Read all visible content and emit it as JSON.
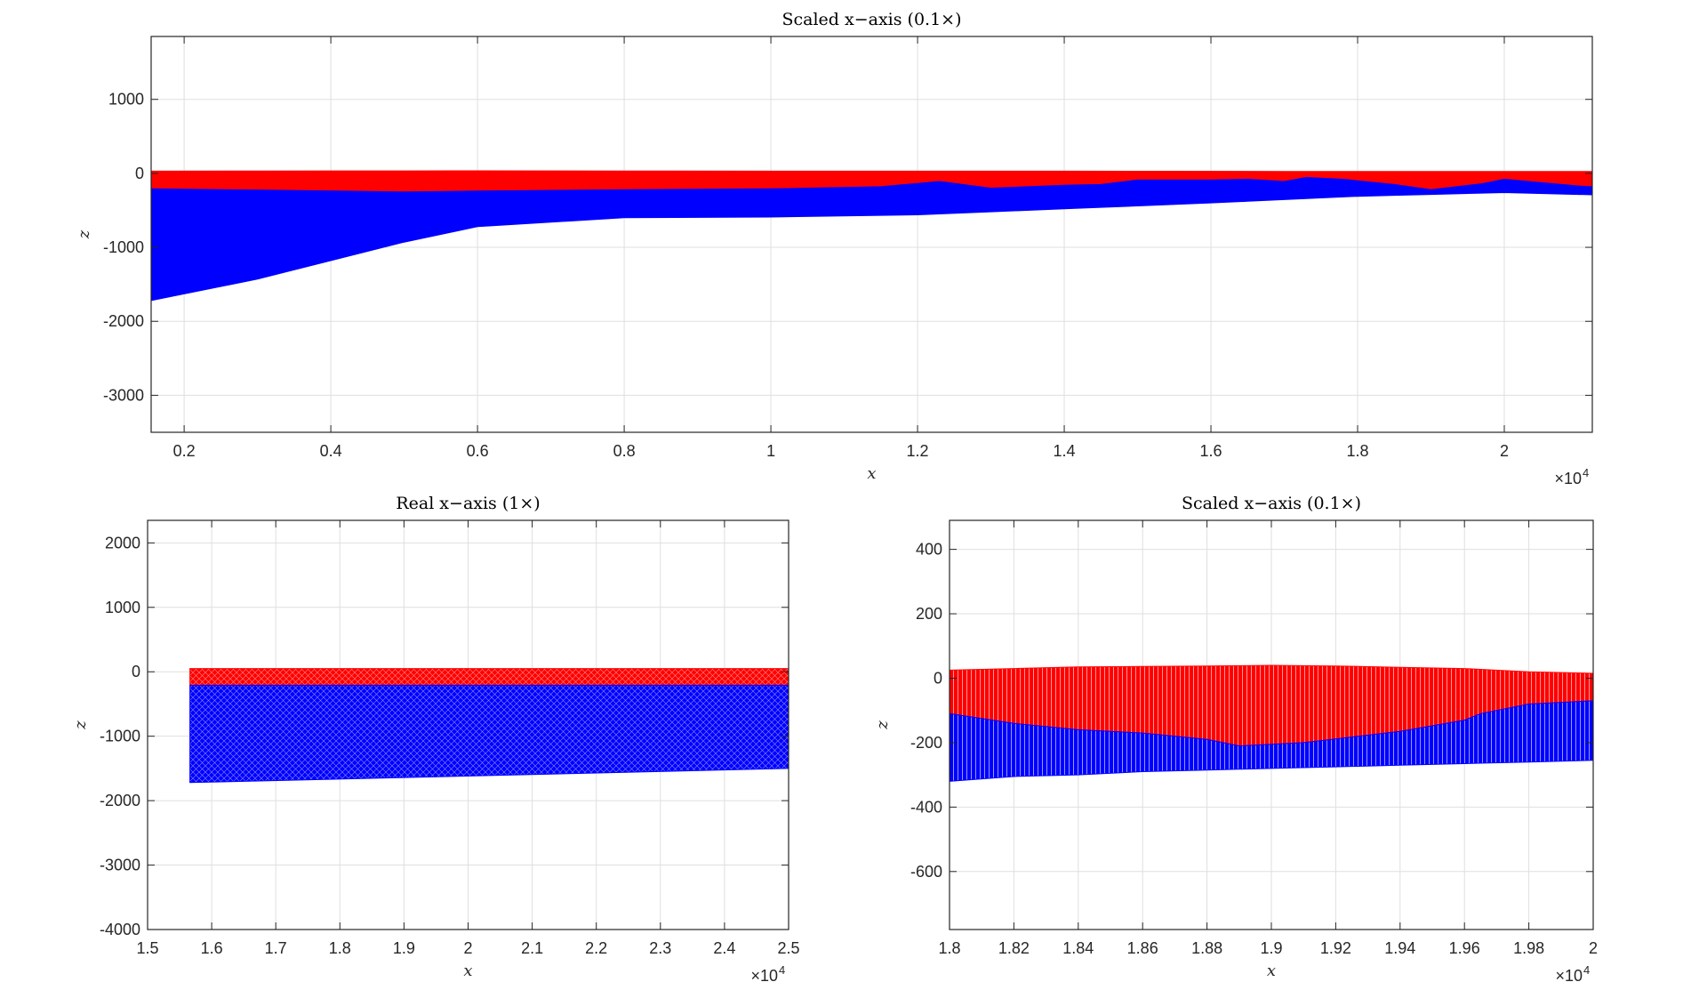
{
  "chart_data": [
    {
      "type": "area",
      "title": "Scaled x−axis (0.1×)",
      "xlabel": "x",
      "ylabel": "z",
      "x_multiplier": "×10",
      "x_multiplier_exp": "4",
      "xlim": [
        0.155,
        2.12
      ],
      "ylim": [
        -3500,
        1850
      ],
      "xticks": [
        0.2,
        0.4,
        0.6,
        0.8,
        1,
        1.2,
        1.4,
        1.6,
        1.8,
        2
      ],
      "xtick_labels": [
        "0.2",
        "0.4",
        "0.6",
        "0.8",
        "1",
        "1.2",
        "1.4",
        "1.6",
        "1.8",
        "2"
      ],
      "yticks": [
        1000,
        0,
        -1000,
        -2000,
        -3000
      ],
      "ytick_labels": [
        "1000",
        "0",
        "-1000",
        "-2000",
        "-3000"
      ],
      "grid": true,
      "series": [
        {
          "color": "#ff0000",
          "upper": [
            [
              0.155,
              30
            ],
            [
              0.6,
              35
            ],
            [
              1.0,
              30
            ],
            [
              1.4,
              30
            ],
            [
              1.8,
              25
            ],
            [
              2.12,
              25
            ]
          ],
          "lower": [
            [
              0.155,
              -210
            ],
            [
              0.3,
              -225
            ],
            [
              0.5,
              -250
            ],
            [
              0.8,
              -220
            ],
            [
              1.0,
              -210
            ],
            [
              1.2,
              -160
            ],
            [
              1.3,
              -200
            ],
            [
              1.5,
              -150
            ],
            [
              1.7,
              -120
            ],
            [
              1.9,
              -220
            ],
            [
              2.0,
              -120
            ],
            [
              2.12,
              -200
            ]
          ]
        },
        {
          "color": "#0000ff",
          "upper": [
            [
              0.155,
              -210
            ],
            [
              0.3,
              -225
            ],
            [
              0.5,
              -250
            ],
            [
              0.8,
              -220
            ],
            [
              1.0,
              -210
            ],
            [
              1.15,
              -180
            ],
            [
              1.23,
              -110
            ],
            [
              1.3,
              -200
            ],
            [
              1.4,
              -160
            ],
            [
              1.45,
              -150
            ],
            [
              1.5,
              -90
            ],
            [
              1.6,
              -90
            ],
            [
              1.65,
              -80
            ],
            [
              1.7,
              -110
            ],
            [
              1.73,
              -55
            ],
            [
              1.78,
              -80
            ],
            [
              1.85,
              -150
            ],
            [
              1.9,
              -220
            ],
            [
              1.97,
              -140
            ],
            [
              2.0,
              -80
            ],
            [
              2.1,
              -170
            ],
            [
              2.12,
              -180
            ]
          ],
          "lower": [
            [
              0.155,
              -1720
            ],
            [
              0.3,
              -1430
            ],
            [
              0.5,
              -930
            ],
            [
              0.6,
              -720
            ],
            [
              0.8,
              -600
            ],
            [
              1.0,
              -590
            ],
            [
              1.2,
              -560
            ],
            [
              1.4,
              -480
            ],
            [
              1.6,
              -400
            ],
            [
              1.8,
              -310
            ],
            [
              2.0,
              -260
            ],
            [
              2.12,
              -290
            ]
          ]
        }
      ]
    },
    {
      "type": "area",
      "title": "Real x−axis (1×)",
      "xlabel": "x",
      "ylabel": "z",
      "x_multiplier": "×10",
      "x_multiplier_exp": "4",
      "xlim": [
        1.5,
        2.5
      ],
      "ylim": [
        -4000,
        2350
      ],
      "xticks": [
        1.5,
        1.6,
        1.7,
        1.8,
        1.9,
        2,
        2.1,
        2.2,
        2.3,
        2.4,
        2.5
      ],
      "xtick_labels": [
        "1.5",
        "1.6",
        "1.7",
        "1.8",
        "1.9",
        "2",
        "2.1",
        "2.2",
        "2.3",
        "2.4",
        "2.5"
      ],
      "yticks": [
        2000,
        1000,
        0,
        -1000,
        -2000,
        -3000,
        -4000
      ],
      "ytick_labels": [
        "2000",
        "1000",
        "0",
        "-1000",
        "-2000",
        "-3000",
        "-4000"
      ],
      "grid": true,
      "series": [
        {
          "color": "#ff0000",
          "upper": [
            [
              1.566,
              50
            ],
            [
              2.5,
              50
            ]
          ],
          "lower": [
            [
              1.566,
              -210
            ],
            [
              2.5,
              -210
            ]
          ]
        },
        {
          "color": "#0000ff",
          "upper": [
            [
              1.566,
              -210
            ],
            [
              2.5,
              -210
            ]
          ],
          "lower": [
            [
              1.566,
              -1720
            ],
            [
              2.5,
              -1500
            ]
          ]
        }
      ]
    },
    {
      "type": "area",
      "title": "Scaled x−axis (0.1×)",
      "xlabel": "x",
      "ylabel": "z",
      "x_multiplier": "×10",
      "x_multiplier_exp": "4",
      "xlim": [
        1.8,
        2.0
      ],
      "ylim": [
        -780,
        490
      ],
      "xticks": [
        1.8,
        1.82,
        1.84,
        1.86,
        1.88,
        1.9,
        1.92,
        1.94,
        1.96,
        1.98,
        2
      ],
      "xtick_labels": [
        "1.8",
        "1.82",
        "1.84",
        "1.86",
        "1.88",
        "1.9",
        "1.92",
        "1.94",
        "1.96",
        "1.98",
        "2"
      ],
      "yticks": [
        400,
        200,
        0,
        -200,
        -400,
        -600
      ],
      "ytick_labels": [
        "400",
        "200",
        "0",
        "-200",
        "-400",
        "-600"
      ],
      "grid": true,
      "series": [
        {
          "color": "#ff0000",
          "upper": [
            [
              1.8,
              25
            ],
            [
              1.84,
              35
            ],
            [
              1.88,
              38
            ],
            [
              1.9,
              40
            ],
            [
              1.92,
              38
            ],
            [
              1.96,
              30
            ],
            [
              1.98,
              20
            ],
            [
              2.0,
              15
            ]
          ],
          "lower": [
            [
              1.8,
              -110
            ],
            [
              1.82,
              -140
            ],
            [
              1.84,
              -160
            ],
            [
              1.86,
              -170
            ],
            [
              1.88,
              -190
            ],
            [
              1.89,
              -210
            ],
            [
              1.91,
              -200
            ],
            [
              1.94,
              -165
            ],
            [
              1.96,
              -130
            ],
            [
              1.965,
              -110
            ],
            [
              1.98,
              -80
            ],
            [
              2.0,
              -70
            ]
          ]
        },
        {
          "color": "#0000ff",
          "upper": [
            [
              1.8,
              -110
            ],
            [
              1.82,
              -140
            ],
            [
              1.84,
              -160
            ],
            [
              1.86,
              -170
            ],
            [
              1.88,
              -190
            ],
            [
              1.89,
              -210
            ],
            [
              1.91,
              -200
            ],
            [
              1.94,
              -165
            ],
            [
              1.96,
              -130
            ],
            [
              1.965,
              -110
            ],
            [
              1.98,
              -80
            ],
            [
              2.0,
              -70
            ]
          ],
          "lower": [
            [
              1.8,
              -320
            ],
            [
              1.82,
              -305
            ],
            [
              1.84,
              -300
            ],
            [
              1.86,
              -290
            ],
            [
              1.88,
              -285
            ],
            [
              1.9,
              -280
            ],
            [
              1.92,
              -275
            ],
            [
              1.94,
              -270
            ],
            [
              1.96,
              -265
            ],
            [
              1.98,
              -260
            ],
            [
              2.0,
              -255
            ]
          ]
        }
      ]
    }
  ]
}
